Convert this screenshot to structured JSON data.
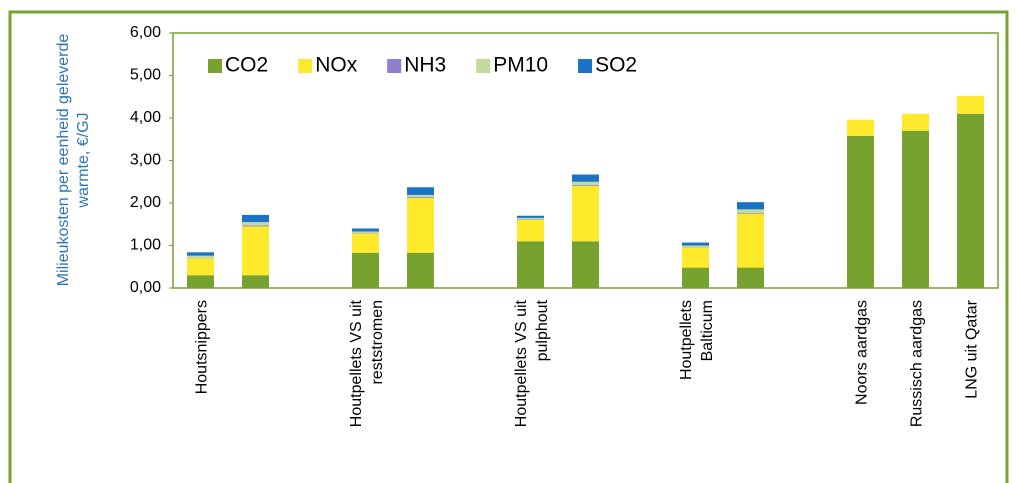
{
  "chart_data": {
    "type": "stacked-bar",
    "ylabel": [
      "Milieukosten per eenheid geleverde",
      "warmte, €/GJ"
    ],
    "categories": [
      [
        "Houtsnippers"
      ],
      null,
      null,
      [
        "Houtpellets VS uit",
        "reststromen"
      ],
      null,
      null,
      [
        "Houtpellets VS uit",
        "pulphout"
      ],
      null,
      null,
      [
        "Houtpellets",
        "Balticum"
      ],
      null,
      null,
      [
        "Noors aardgas"
      ],
      [
        "Russisch aardgas"
      ],
      [
        "LNG uit Qatar"
      ]
    ],
    "series": [
      {
        "name": "CO2",
        "color": "#77a22f",
        "values": [
          0.3,
          0.3,
          null,
          0.83,
          0.83,
          null,
          1.1,
          1.1,
          null,
          0.48,
          0.48,
          null,
          3.58,
          3.7,
          4.1
        ]
      },
      {
        "name": "NOx",
        "color": "#ffe92b",
        "values": [
          0.4,
          1.15,
          null,
          0.45,
          1.29,
          null,
          0.5,
          1.3,
          null,
          0.47,
          1.27,
          null,
          0.38,
          0.4,
          0.42
        ]
      },
      {
        "name": "NH3",
        "color": "#8f7fcf",
        "values": [
          0.01,
          0.02,
          null,
          0.01,
          0.02,
          null,
          0.01,
          0.02,
          null,
          0.01,
          0.02,
          null,
          0,
          0,
          0
        ]
      },
      {
        "name": "PM10",
        "color": "#c4dc9b",
        "values": [
          0.05,
          0.08,
          null,
          0.04,
          0.05,
          null,
          0.04,
          0.08,
          null,
          0.04,
          0.08,
          null,
          0,
          0,
          0
        ]
      },
      {
        "name": "SO2",
        "color": "#1a73c4",
        "values": [
          0.08,
          0.17,
          null,
          0.07,
          0.18,
          null,
          0.05,
          0.17,
          null,
          0.07,
          0.17,
          null,
          0,
          0,
          0
        ]
      }
    ],
    "ylim": [
      0,
      6
    ],
    "yticks": [
      {
        "value": 0,
        "label": "0,00"
      },
      {
        "value": 1,
        "label": "1,00"
      },
      {
        "value": 2,
        "label": "2,00"
      },
      {
        "value": 3,
        "label": "3,00"
      },
      {
        "value": 4,
        "label": "4,00"
      },
      {
        "value": 5,
        "label": "5,00"
      },
      {
        "value": 6,
        "label": "6,00"
      }
    ],
    "legend": "top-left"
  }
}
